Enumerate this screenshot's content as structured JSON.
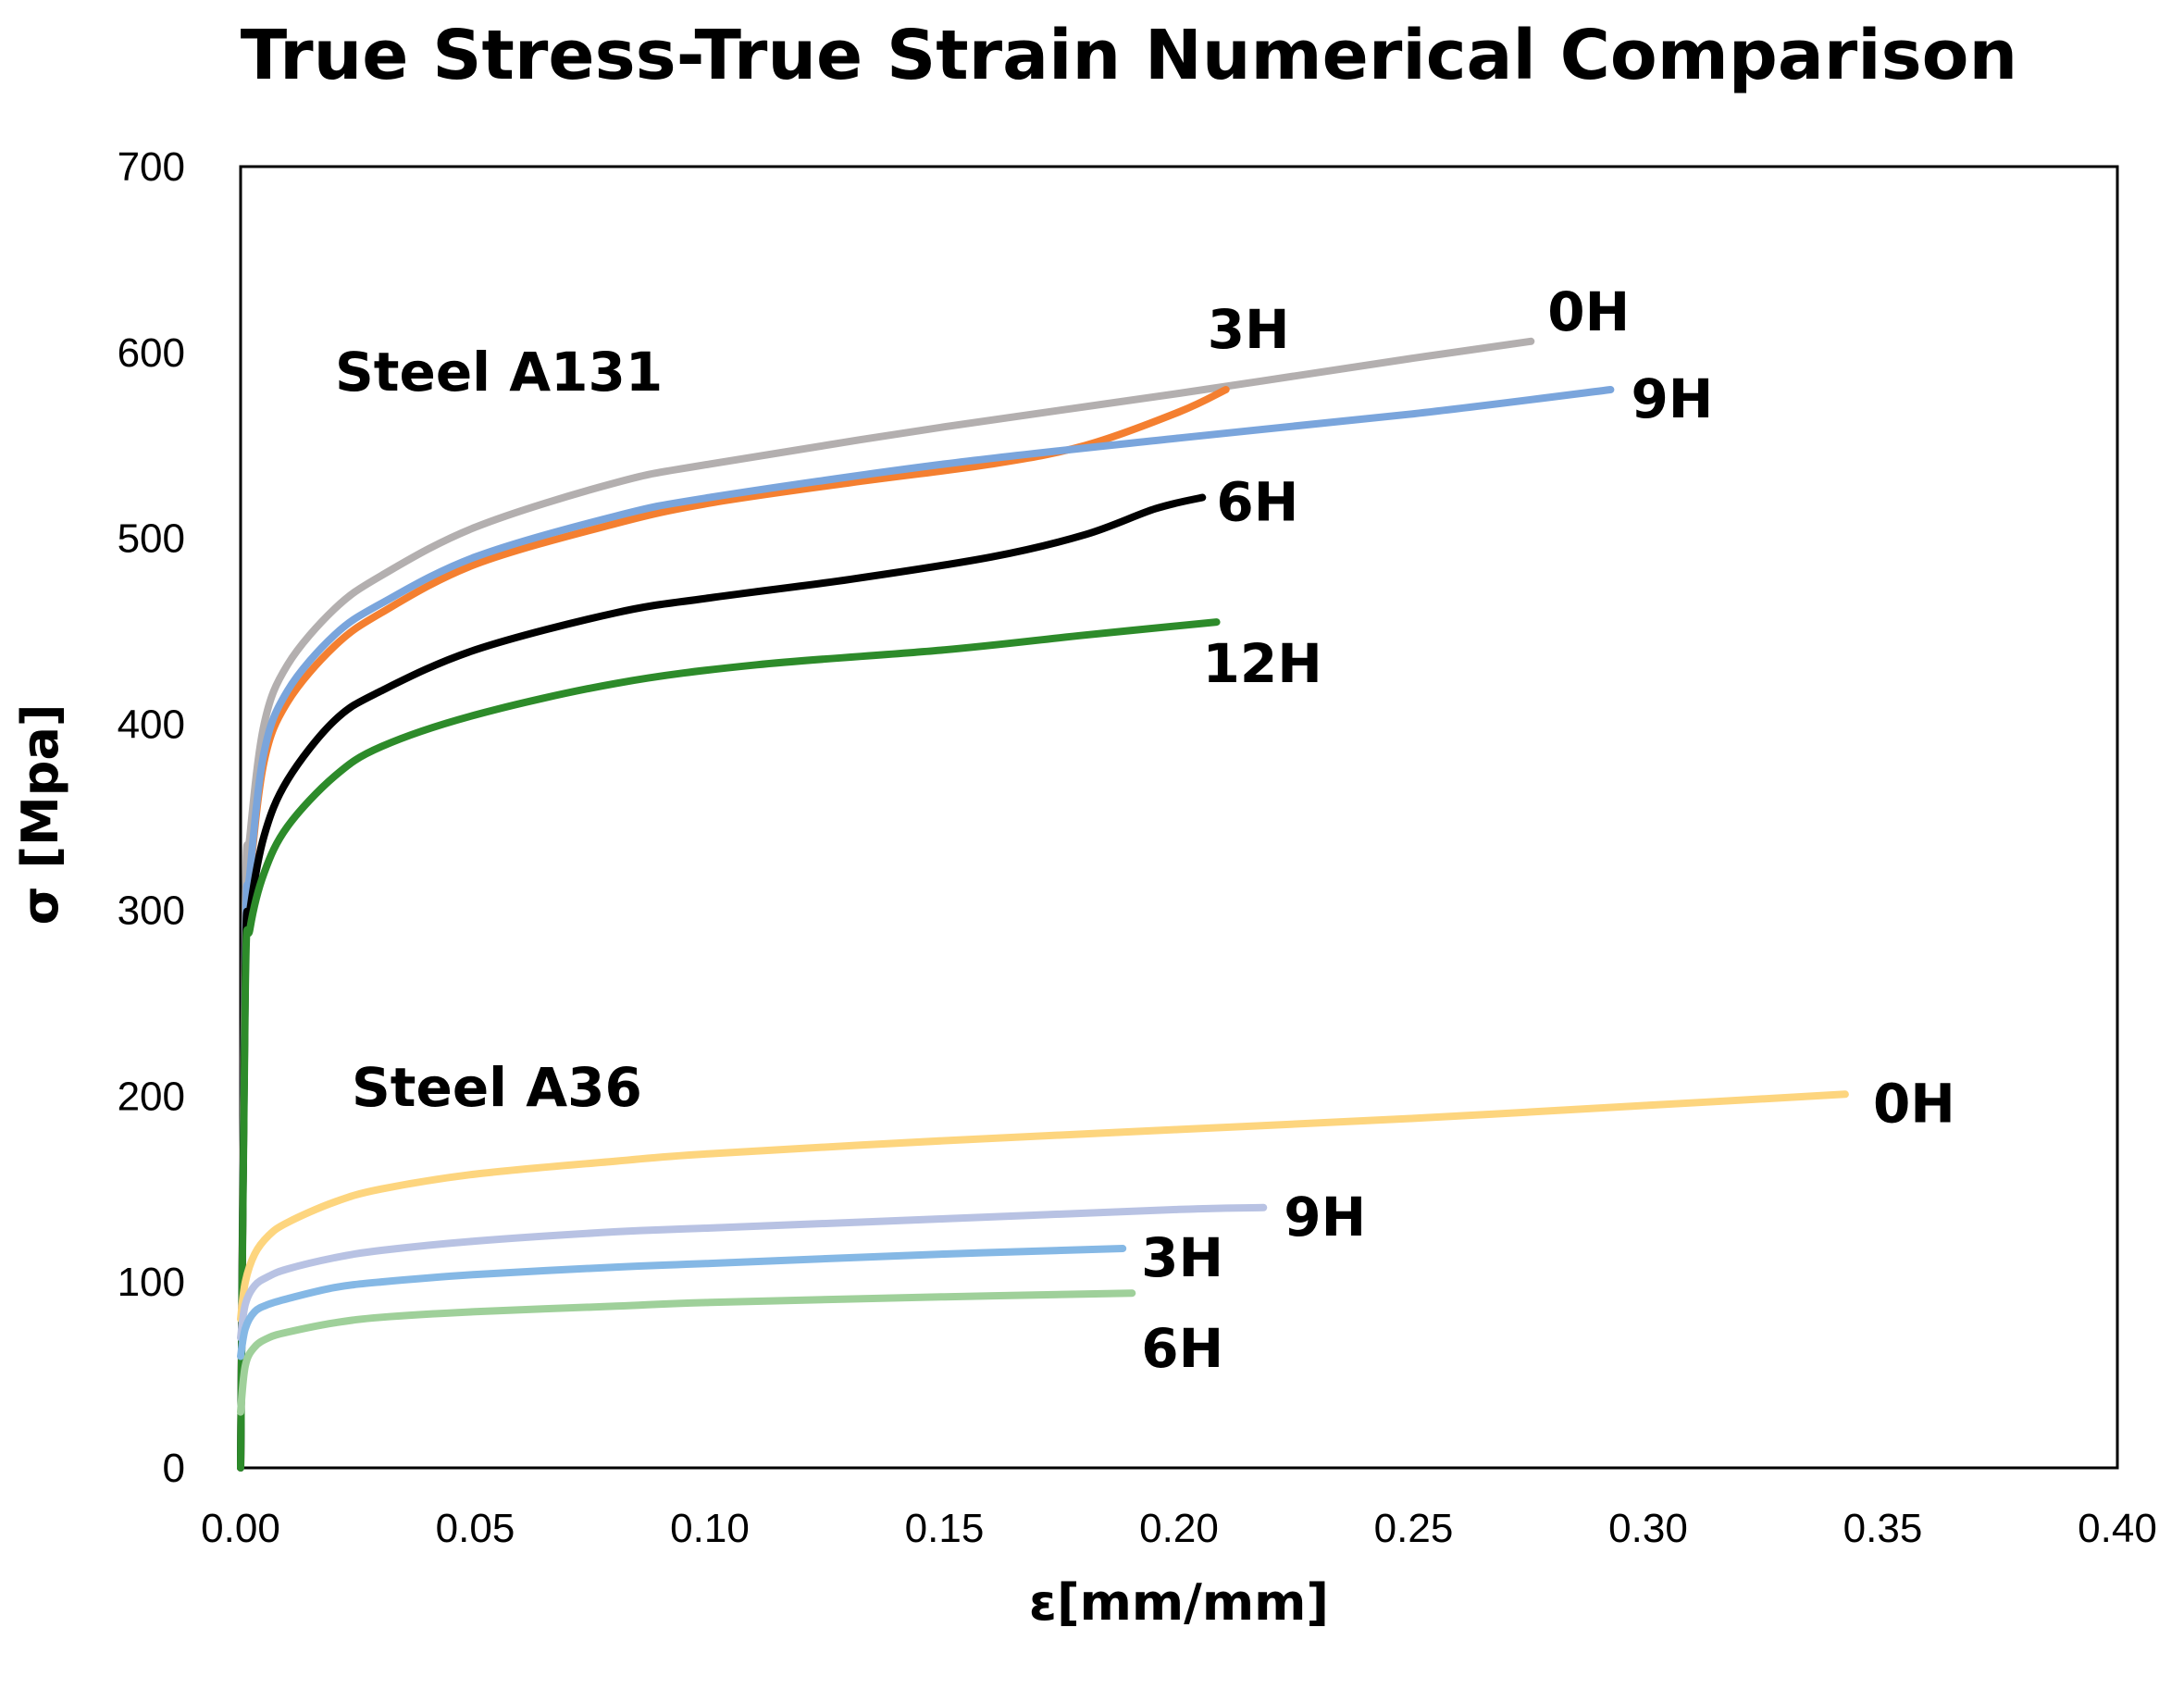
{
  "chart_data": {
    "type": "line",
    "title": "True Stress-True Strain Numerical Comparison",
    "xlabel": "ε[mm/mm]",
    "ylabel": "σ [Mpa]",
    "xlim": [
      0,
      0.4
    ],
    "ylim": [
      0,
      700
    ],
    "x_ticks": [
      "0.00",
      "0.05",
      "0.10",
      "0.15",
      "0.20",
      "0.25",
      "0.30",
      "0.35",
      "0.40"
    ],
    "y_ticks": [
      "0",
      "100",
      "200",
      "300",
      "400",
      "500",
      "600",
      "700"
    ],
    "grid": false,
    "legend": "none",
    "groups": [
      "Steel A131",
      "Steel A36"
    ],
    "series": [
      {
        "name": "A131 0H",
        "group": "Steel A131",
        "label": "0H",
        "color": "#b3afaf",
        "x": [
          0.0,
          0.001,
          0.002,
          0.005,
          0.01,
          0.02,
          0.03,
          0.05,
          0.08,
          0.1,
          0.15,
          0.2,
          0.25,
          0.275
        ],
        "y": [
          0,
          300,
          340,
          400,
          432,
          462,
          480,
          506,
          530,
          540,
          560,
          578,
          597,
          606
        ]
      },
      {
        "name": "A131 3H",
        "group": "Steel A131",
        "label": "3H",
        "color": "#f47f30",
        "x": [
          0.0,
          0.001,
          0.002,
          0.005,
          0.01,
          0.02,
          0.03,
          0.05,
          0.08,
          0.1,
          0.13,
          0.16,
          0.18,
          0.2,
          0.21
        ],
        "y": [
          0,
          280,
          318,
          380,
          412,
          442,
          460,
          486,
          508,
          519,
          530,
          540,
          550,
          568,
          580
        ]
      },
      {
        "name": "A131 9H",
        "group": "Steel A131",
        "label": "9H",
        "color": "#7aa5dc",
        "x": [
          0.0,
          0.001,
          0.002,
          0.005,
          0.01,
          0.02,
          0.03,
          0.05,
          0.08,
          0.1,
          0.15,
          0.2,
          0.25,
          0.292
        ],
        "y": [
          0,
          280,
          320,
          385,
          418,
          448,
          465,
          490,
          512,
          522,
          540,
          554,
          567,
          580
        ]
      },
      {
        "name": "A131 6H",
        "group": "Steel A131",
        "label": "6H",
        "color": "#000000",
        "x": [
          0.0,
          0.001,
          0.002,
          0.005,
          0.01,
          0.02,
          0.03,
          0.05,
          0.08,
          0.1,
          0.13,
          0.16,
          0.18,
          0.195,
          0.205
        ],
        "y": [
          0,
          270,
          300,
          340,
          370,
          402,
          418,
          440,
          460,
          468,
          478,
          490,
          502,
          516,
          522
        ]
      },
      {
        "name": "A131 12H",
        "group": "Steel A131",
        "label": "12H",
        "color": "#2d8b2a",
        "x": [
          0.0,
          0.001,
          0.002,
          0.005,
          0.01,
          0.02,
          0.03,
          0.05,
          0.08,
          0.11,
          0.15,
          0.18,
          0.208
        ],
        "y": [
          0,
          260,
          290,
          320,
          345,
          372,
          388,
          405,
          422,
          432,
          440,
          448,
          455
        ]
      },
      {
        "name": "A36 0H",
        "group": "Steel A36",
        "label": "0H",
        "color": "#fdd57e",
        "x": [
          0.0,
          0.001,
          0.003,
          0.006,
          0.01,
          0.02,
          0.03,
          0.05,
          0.08,
          0.1,
          0.15,
          0.2,
          0.25,
          0.3,
          0.342
        ],
        "y": [
          80,
          100,
          115,
          125,
          132,
          143,
          150,
          158,
          165,
          169,
          176,
          182,
          188,
          195,
          201
        ]
      },
      {
        "name": "A36 9H",
        "group": "Steel A36",
        "label": "9H",
        "color": "#b8c2e3",
        "x": [
          0.0,
          0.001,
          0.003,
          0.006,
          0.01,
          0.02,
          0.03,
          0.05,
          0.08,
          0.1,
          0.15,
          0.2,
          0.218
        ],
        "y": [
          70,
          88,
          98,
          103,
          107,
          113,
          117,
          122,
          127,
          129,
          134,
          139,
          140
        ]
      },
      {
        "name": "A36 3H",
        "group": "Steel A36",
        "label": "3H",
        "color": "#85b8e5",
        "x": [
          0.0,
          0.001,
          0.003,
          0.006,
          0.01,
          0.02,
          0.03,
          0.05,
          0.08,
          0.1,
          0.15,
          0.188
        ],
        "y": [
          60,
          75,
          84,
          88,
          91,
          97,
          100,
          104,
          108,
          110,
          115,
          118
        ]
      },
      {
        "name": "A36 6H",
        "group": "Steel A36",
        "label": "6H",
        "color": "#9fd09a",
        "x": [
          0.0,
          0.001,
          0.003,
          0.006,
          0.01,
          0.02,
          0.03,
          0.05,
          0.08,
          0.1,
          0.15,
          0.19
        ],
        "y": [
          30,
          55,
          65,
          70,
          73,
          78,
          81,
          84,
          87,
          89,
          92,
          94
        ]
      }
    ]
  }
}
